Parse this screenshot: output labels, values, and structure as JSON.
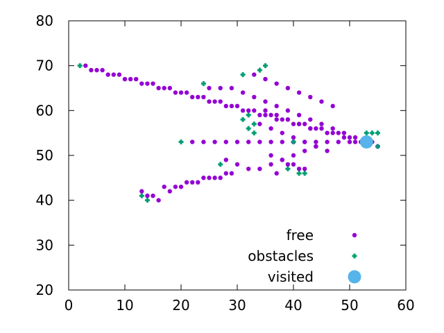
{
  "chart_data": {
    "type": "scatter",
    "title": "",
    "xlabel": "",
    "ylabel": "",
    "xlim": [
      0,
      60
    ],
    "ylim": [
      20,
      80
    ],
    "xticks": [
      "0",
      "10",
      "20",
      "30",
      "40",
      "50",
      "60"
    ],
    "yticks": [
      "20",
      "30",
      "40",
      "50",
      "60",
      "70",
      "80"
    ],
    "grid": false,
    "legend_position": "bottom-right",
    "series": [
      {
        "name": "free",
        "color": "#9400d3",
        "marker": "small-dot",
        "x": [
          3,
          4,
          5,
          6,
          7,
          8,
          9,
          10,
          11,
          12,
          13,
          14,
          15,
          16,
          17,
          18,
          19,
          20,
          21,
          22,
          23,
          24,
          25,
          26,
          27,
          28,
          29,
          30,
          31,
          32,
          33,
          34,
          35,
          36,
          37,
          38,
          39,
          40,
          41,
          42,
          43,
          44,
          45,
          46,
          47,
          48,
          49,
          50,
          51,
          52,
          54,
          55,
          13,
          14,
          15,
          16,
          17,
          18,
          19,
          20,
          21,
          22,
          23,
          24,
          25,
          26,
          27,
          28,
          29,
          22,
          24,
          26,
          28,
          30,
          32,
          34,
          36,
          38,
          40,
          42,
          44,
          46,
          48,
          50,
          25,
          27,
          29,
          31,
          33,
          35,
          37,
          39,
          41,
          43,
          45,
          47,
          49,
          51,
          28,
          30,
          32,
          34,
          36,
          38,
          40,
          42,
          44,
          33,
          35,
          37,
          39,
          41,
          43,
          45,
          47,
          34,
          36,
          38,
          40,
          42,
          44,
          46,
          35,
          37,
          39,
          41,
          43,
          36,
          38,
          40,
          42,
          37,
          39,
          41
        ],
        "y": [
          70,
          69,
          69,
          69,
          68,
          68,
          68,
          67,
          67,
          67,
          66,
          66,
          66,
          65,
          65,
          65,
          64,
          64,
          64,
          63,
          63,
          63,
          62,
          62,
          62,
          61,
          61,
          61,
          60,
          60,
          60,
          59,
          59,
          59,
          58,
          58,
          58,
          57,
          57,
          57,
          56,
          56,
          56,
          55,
          55,
          55,
          54,
          54,
          53,
          53,
          53,
          52,
          42,
          41,
          41,
          40,
          43,
          42,
          43,
          43,
          44,
          44,
          44,
          45,
          45,
          45,
          45,
          46,
          46,
          53,
          53,
          53,
          53,
          53,
          53,
          53,
          53,
          53,
          53,
          53,
          53,
          53,
          53,
          53,
          65,
          65,
          65,
          64,
          63,
          62,
          61,
          60,
          59,
          58,
          57,
          56,
          55,
          54,
          49,
          48,
          47,
          47,
          48,
          49,
          50,
          51,
          52,
          68,
          67,
          66,
          65,
          64,
          63,
          62,
          61,
          57,
          56,
          55,
          54,
          53,
          52,
          51,
          60,
          59,
          58,
          57,
          56,
          50,
          49,
          48,
          47,
          46,
          48,
          47
        ]
      },
      {
        "name": "obstacles",
        "color": "#009e73",
        "marker": "small-plus",
        "x": [
          2,
          24,
          31,
          31,
          32,
          33,
          34,
          35,
          32,
          33,
          20,
          27,
          39,
          40,
          41,
          42,
          53,
          54,
          55,
          55,
          13,
          14
        ],
        "y": [
          70,
          66,
          68,
          58,
          56,
          55,
          69,
          70,
          59,
          57,
          53,
          48,
          47,
          53,
          46,
          46,
          55,
          55,
          55,
          52,
          41,
          40
        ]
      },
      {
        "name": "visited",
        "color": "#56b4e9",
        "marker": "large-circle",
        "x": [
          53
        ],
        "y": [
          53
        ]
      }
    ]
  }
}
